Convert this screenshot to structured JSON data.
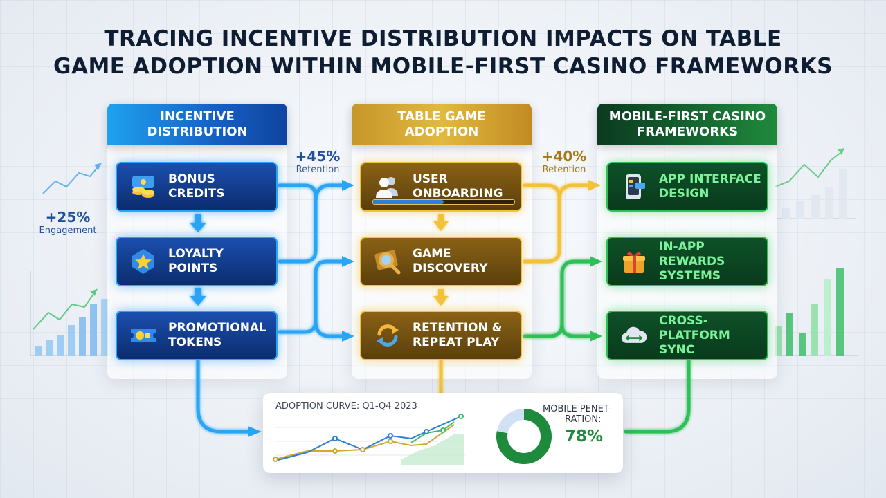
{
  "title": {
    "line1": "Tracing Incentive Distribution Impacts on Table",
    "line2": "Game Adoption within Mobile-First Casino Frameworks"
  },
  "columns": {
    "incentive": {
      "header": [
        "Incentive",
        "Distribution"
      ],
      "color": "#1560c4",
      "cards": [
        {
          "lines": [
            "Bonus",
            "Credits"
          ],
          "icon": "coin-stack-icon"
        },
        {
          "lines": [
            "Loyalty",
            "Points"
          ],
          "icon": "star-badge-icon"
        },
        {
          "lines": [
            "Promotional",
            "Tokens"
          ],
          "icon": "ticket-icon"
        }
      ]
    },
    "adoption": {
      "header": [
        "Table Game",
        "Adoption"
      ],
      "color": "#e0b93f",
      "cards": [
        {
          "lines": [
            "User",
            "Onboarding"
          ],
          "icon": "users-icon",
          "progress": 0.5
        },
        {
          "lines": [
            "Game",
            "Discovery"
          ],
          "icon": "magnifier-icon"
        },
        {
          "lines": [
            "Retention &",
            "Repeat Play"
          ],
          "icon": "refresh-icon"
        }
      ]
    },
    "mobile": {
      "header": [
        "Mobile-First Casino",
        "Frameworks"
      ],
      "color": "#1f8a3c",
      "cards": [
        {
          "lines": [
            "App Interface",
            "Design"
          ],
          "icon": "smartphone-icon"
        },
        {
          "lines": [
            "In-App",
            "Rewards",
            "Systems"
          ],
          "icon": "gift-icon"
        },
        {
          "lines": [
            "Cross-Platform",
            "Sync"
          ],
          "icon": "cloud-sync-icon"
        }
      ]
    }
  },
  "stats": {
    "engagement": {
      "value": "+25%",
      "label": "Engagement"
    },
    "retention_a": {
      "value": "+45%",
      "label": "Retention"
    },
    "retention_b": {
      "value": "+40%",
      "label": "Retention"
    }
  },
  "analytics": {
    "curve_title": "Adoption Curve: Q1-Q4 2023",
    "donut_label": [
      "Mobile Penet-",
      "ration:"
    ],
    "donut_value": "78%",
    "donut_fraction": 0.78
  },
  "colors": {
    "blue": "#2aa5f5",
    "gold": "#f2c23c",
    "green": "#2fbf57"
  }
}
